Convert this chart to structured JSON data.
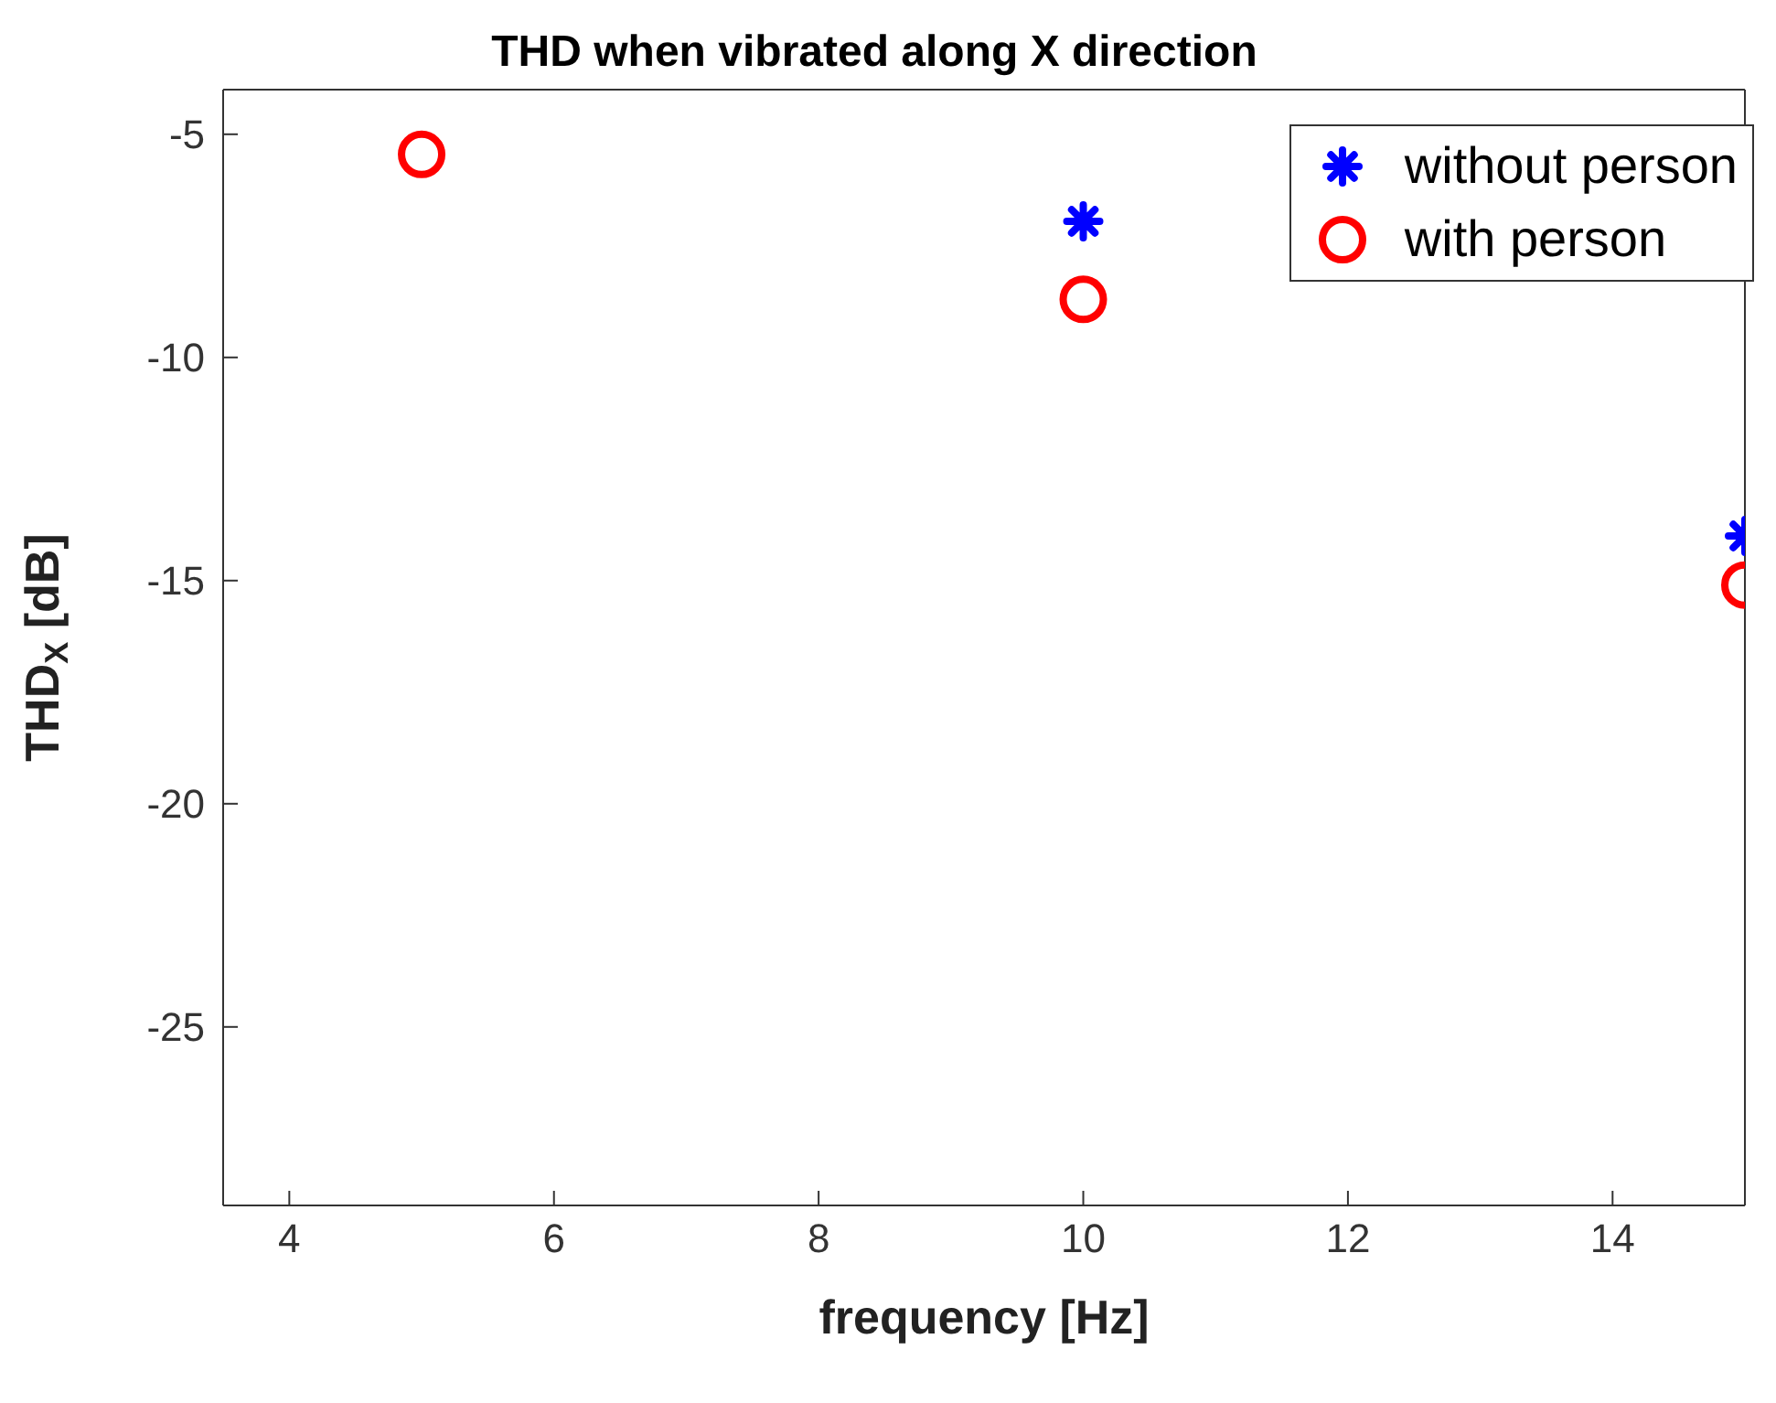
{
  "chart_data": {
    "type": "scatter",
    "title": "THD when vibrated along X direction",
    "xlabel": "frequency [Hz]",
    "ylabel": "THD$_{X}$ [dB]",
    "xlim": [
      3.5,
      15
    ],
    "xticks": [
      4,
      6,
      8,
      10,
      12,
      14
    ],
    "ylim": [
      -29,
      -4
    ],
    "yticks": [
      -25,
      -20,
      -15,
      -10,
      -5
    ],
    "grid": false,
    "legend": "top right",
    "series": [
      {
        "name": "without person",
        "color": "#0000ff",
        "marker": "cross",
        "x": [
          10,
          15
        ],
        "values": [
          -6.95,
          -14.0
        ]
      },
      {
        "name": "with person",
        "color": "#ff0000",
        "marker": "circle",
        "x": [
          5,
          10,
          15
        ],
        "values": [
          -5.45,
          -8.7,
          -15.1
        ]
      }
    ]
  }
}
